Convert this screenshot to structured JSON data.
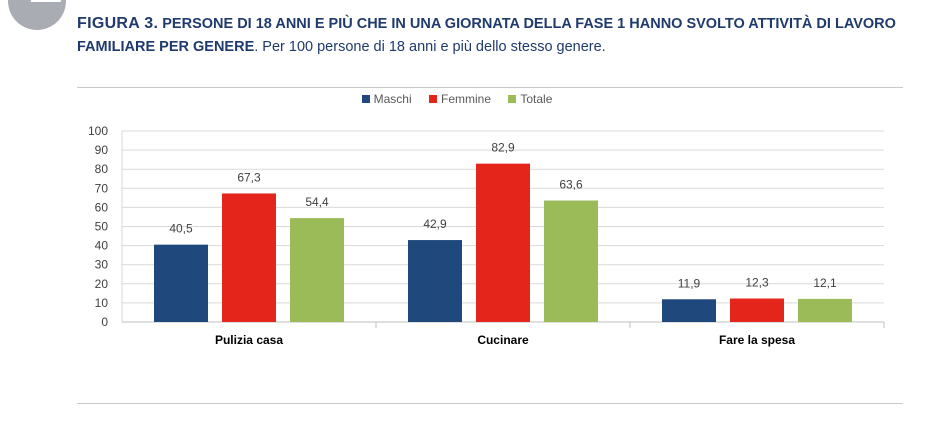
{
  "figure": {
    "label": "FIGURA 3.",
    "title": "PERSONE DI 18 ANNI E PIÙ CHE IN UNA GIORNATA DELLA FASE 1 HANNO SVOLTO ATTIVITÀ DI LAVORO FAMILIARE PER GENERE",
    "note": ". Per 100 persone di 18 anni e più dello stesso genere."
  },
  "colors": {
    "title": "#1f3a6d",
    "maschi": "#1f497d",
    "femmine": "#e3251b",
    "totale": "#9bbb59",
    "grid": "#d9d9d9",
    "text": "#404040"
  },
  "chart_data": {
    "type": "bar",
    "categories": [
      "Pulizia casa",
      "Cucinare",
      "Fare la spesa"
    ],
    "series": [
      {
        "name": "Maschi",
        "values": [
          40.5,
          42.9,
          11.9
        ],
        "labels": [
          "40,5",
          "42,9",
          "11,9"
        ]
      },
      {
        "name": "Femmine",
        "values": [
          67.3,
          82.9,
          12.3
        ],
        "labels": [
          "67,3",
          "82,9",
          "12,3"
        ]
      },
      {
        "name": "Totale",
        "values": [
          54.4,
          63.6,
          12.1
        ],
        "labels": [
          "54,4",
          "63,6",
          "12,1"
        ]
      }
    ],
    "ylim": [
      0,
      100
    ],
    "yticks": [
      0,
      10,
      20,
      30,
      40,
      50,
      60,
      70,
      80,
      90,
      100
    ],
    "grid": true,
    "legend_position": "top-center"
  }
}
